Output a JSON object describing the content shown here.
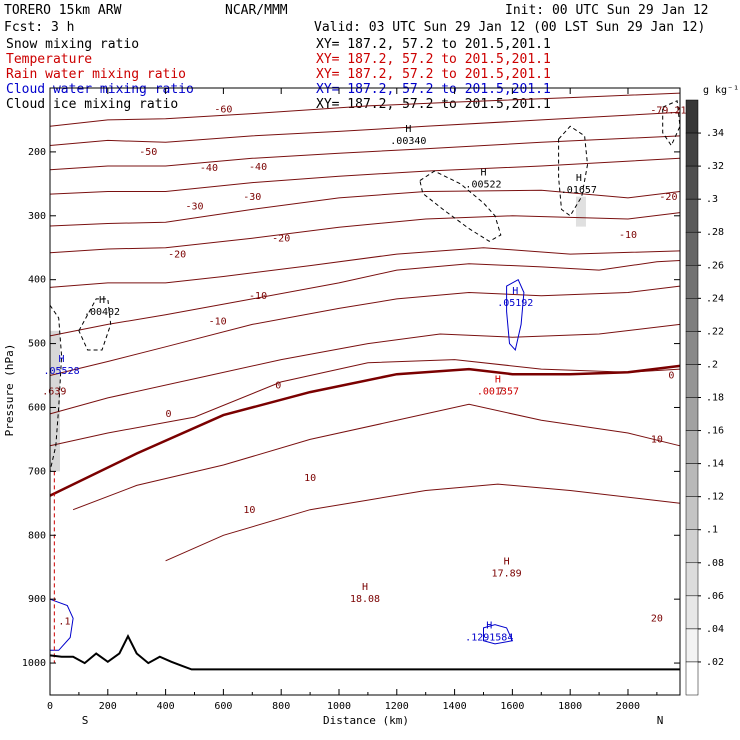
{
  "header": {
    "model": "TORERO  15km ARW",
    "center": "NCAR/MMM",
    "init": "Init: 00 UTC Sun 29 Jan 12",
    "fcst": "Fcst:    3 h",
    "valid": "Valid: 03 UTC Sun 29 Jan 12 (00 LST Sun 29 Jan 12)"
  },
  "fields": [
    {
      "name": "Snow mixing ratio",
      "xy": "XY= 187.2, 57.2 to 201.5,201.1",
      "color": "#000000"
    },
    {
      "name": "Temperature",
      "xy": "XY= 187.2, 57.2 to 201.5,201.1",
      "color": "#cc0000"
    },
    {
      "name": "Rain water mixing ratio",
      "xy": "XY= 187.2, 57.2 to 201.5,201.1",
      "color": "#cc0000"
    },
    {
      "name": "Cloud water mixing ratio",
      "xy": "XY= 187.2, 57.2 to 201.5,201.1",
      "color": "#0000cc"
    },
    {
      "name": "Cloud ice mixing ratio",
      "xy": "XY= 187.2, 57.2 to 201.5,201.1",
      "color": "#000000"
    }
  ],
  "colorbar": {
    "unit": "g kg⁻¹",
    "ticks": [
      ".34",
      ".32",
      ".3",
      ".28",
      ".26",
      ".24",
      ".22",
      ".2",
      ".18",
      ".16",
      ".14",
      ".12",
      ".1",
      ".08",
      ".06",
      ".04",
      ".02"
    ]
  },
  "chart_data": {
    "type": "contour-cross-section",
    "xlabel": "Distance (km)",
    "ylabel": "Pressure (hPa)",
    "xlim": [
      0,
      2180
    ],
    "ylim": [
      1050,
      100
    ],
    "xticks": [
      0,
      200,
      400,
      600,
      800,
      1000,
      1200,
      1400,
      1600,
      1800,
      2000
    ],
    "yticks": [
      200,
      300,
      400,
      500,
      600,
      700,
      800,
      900,
      1000
    ],
    "x_end_labels": {
      "left": "S",
      "right": "N"
    },
    "temperature_contours": [
      {
        "level": -60,
        "points": [
          [
            0,
            160
          ],
          [
            200,
            150
          ],
          [
            400,
            148
          ],
          [
            700,
            140
          ],
          [
            1100,
            128
          ],
          [
            1400,
            122
          ],
          [
            1800,
            115
          ],
          [
            2180,
            108
          ]
        ]
      },
      {
        "level": -50,
        "points": [
          [
            0,
            190
          ],
          [
            200,
            182
          ],
          [
            400,
            185
          ],
          [
            700,
            175
          ],
          [
            1000,
            168
          ],
          [
            1300,
            160
          ],
          [
            1700,
            150
          ],
          [
            2180,
            138
          ]
        ]
      },
      {
        "level": -40,
        "points": [
          [
            0,
            228
          ],
          [
            200,
            222
          ],
          [
            400,
            222
          ],
          [
            700,
            210
          ],
          [
            1000,
            202
          ],
          [
            1300,
            195
          ],
          [
            1700,
            185
          ],
          [
            2180,
            175
          ]
        ]
      },
      {
        "level": -30,
        "points": [
          [
            0,
            266
          ],
          [
            200,
            262
          ],
          [
            400,
            262
          ],
          [
            700,
            248
          ],
          [
            1000,
            238
          ],
          [
            1300,
            230
          ],
          [
            1700,
            222
          ],
          [
            2180,
            210
          ]
        ]
      },
      {
        "level": -20,
        "points": [
          [
            0,
            316
          ],
          [
            200,
            312
          ],
          [
            400,
            310
          ],
          [
            700,
            290
          ],
          [
            1000,
            272
          ],
          [
            1300,
            262
          ],
          [
            1700,
            260
          ],
          [
            2000,
            272
          ],
          [
            2180,
            262
          ]
        ]
      },
      {
        "level": -10,
        "points": [
          [
            0,
            358
          ],
          [
            200,
            352
          ],
          [
            400,
            350
          ],
          [
            700,
            335
          ],
          [
            1000,
            318
          ],
          [
            1300,
            305
          ],
          [
            1600,
            300
          ],
          [
            2000,
            305
          ],
          [
            2180,
            295
          ]
        ]
      },
      {
        "level": -10,
        "points": [
          [
            0,
            412
          ],
          [
            200,
            405
          ],
          [
            400,
            405
          ],
          [
            600,
            395
          ],
          [
            900,
            378
          ],
          [
            1200,
            360
          ],
          [
            1500,
            350
          ],
          [
            1800,
            360
          ],
          [
            2180,
            355
          ]
        ]
      },
      {
        "level": 0,
        "points": [
          [
            0,
            488
          ],
          [
            200,
            470
          ],
          [
            400,
            455
          ],
          [
            700,
            430
          ],
          [
            1000,
            405
          ],
          [
            1200,
            385
          ],
          [
            1450,
            375
          ],
          [
            1700,
            380
          ],
          [
            1900,
            385
          ],
          [
            2100,
            372
          ],
          [
            2180,
            370
          ]
        ]
      },
      {
        "level": 0,
        "points": [
          [
            0,
            550
          ],
          [
            200,
            528
          ],
          [
            400,
            505
          ],
          [
            700,
            470
          ],
          [
            1000,
            445
          ],
          [
            1200,
            430
          ],
          [
            1450,
            420
          ],
          [
            1700,
            425
          ],
          [
            2000,
            420
          ],
          [
            2180,
            410
          ]
        ]
      },
      {
        "level": 10,
        "points": [
          [
            0,
            610
          ],
          [
            200,
            585
          ],
          [
            500,
            555
          ],
          [
            800,
            525
          ],
          [
            1100,
            500
          ],
          [
            1350,
            485
          ],
          [
            1600,
            490
          ],
          [
            1900,
            485
          ],
          [
            2180,
            470
          ]
        ]
      },
      {
        "level": 10,
        "points": [
          [
            0,
            660
          ],
          [
            200,
            640
          ],
          [
            500,
            615
          ],
          [
            800,
            560
          ],
          [
            1100,
            530
          ],
          [
            1400,
            525
          ],
          [
            1700,
            540
          ],
          [
            2000,
            545
          ],
          [
            2180,
            540
          ]
        ]
      },
      {
        "level": 10,
        "points": [
          [
            80,
            760
          ],
          [
            300,
            722
          ],
          [
            600,
            690
          ],
          [
            900,
            650
          ],
          [
            1200,
            620
          ],
          [
            1450,
            595
          ],
          [
            1700,
            620
          ],
          [
            2000,
            640
          ],
          [
            2180,
            660
          ]
        ]
      },
      {
        "level": 20,
        "points": [
          [
            400,
            840
          ],
          [
            600,
            800
          ],
          [
            900,
            760
          ],
          [
            1100,
            745
          ],
          [
            1300,
            730
          ],
          [
            1550,
            720
          ],
          [
            1800,
            730
          ],
          [
            2180,
            750
          ]
        ]
      }
    ],
    "bold_freezing_line": {
      "level": 0,
      "points": [
        [
          0,
          738
        ],
        [
          300,
          672
        ],
        [
          600,
          612
        ],
        [
          900,
          576
        ],
        [
          1200,
          548
        ],
        [
          1450,
          540
        ],
        [
          1600,
          548
        ],
        [
          1800,
          548
        ],
        [
          2000,
          545
        ],
        [
          2180,
          535
        ]
      ]
    },
    "H_markers": [
      {
        "label": "H",
        "value": ".00340",
        "x": 1240,
        "p": 178,
        "color": "#000000"
      },
      {
        "label": "H",
        "value": ".00522",
        "x": 1500,
        "p": 246,
        "color": "#000000"
      },
      {
        "label": "H",
        "value": ".01657",
        "x": 1830,
        "p": 255,
        "color": "#000000"
      },
      {
        "label": "H",
        "value": ".00402",
        "x": 180,
        "p": 446,
        "color": "#000000"
      },
      {
        "label": "H",
        "value": ".05192",
        "x": 1610,
        "p": 432,
        "color": "#0000cc"
      },
      {
        "label": "H",
        "value": ".05528",
        "x": 40,
        "p": 538,
        "color": "#0000cc"
      },
      {
        "label": "H",
        "value": ".001357",
        "x": 1550,
        "p": 570,
        "color": "#cc0000"
      },
      {
        "label": "H",
        "value": "17.89",
        "x": 1580,
        "p": 855,
        "color": "#7a0000"
      },
      {
        "label": "H",
        "value": "18.08",
        "x": 1090,
        "p": 895,
        "color": "#7a0000"
      },
      {
        "label": "H",
        "value": ".1291584",
        "x": 1520,
        "p": 955,
        "color": "#0000cc"
      }
    ],
    "contour_labels": [
      {
        "text": "-79.21",
        "x": 2140,
        "p": 140
      },
      {
        "text": "-60",
        "x": 600,
        "p": 138
      },
      {
        "text": "-50",
        "x": 340,
        "p": 205
      },
      {
        "text": "-40",
        "x": 550,
        "p": 230
      },
      {
        "text": "-40",
        "x": 720,
        "p": 228
      },
      {
        "text": "-30",
        "x": 500,
        "p": 290
      },
      {
        "text": "-30",
        "x": 700,
        "p": 275
      },
      {
        "text": "-20",
        "x": 800,
        "p": 340
      },
      {
        "text": "-20",
        "x": 440,
        "p": 365
      },
      {
        "text": "-20",
        "x": 2140,
        "p": 275
      },
      {
        "text": "-10",
        "x": 720,
        "p": 430
      },
      {
        "text": "-10",
        "x": 580,
        "p": 470
      },
      {
        "text": "-10",
        "x": 2000,
        "p": 335
      },
      {
        "text": "0",
        "x": 790,
        "p": 570
      },
      {
        "text": "0",
        "x": 410,
        "p": 615
      },
      {
        "text": "0",
        "x": 2150,
        "p": 555
      },
      {
        "text": "10",
        "x": 900,
        "p": 715
      },
      {
        "text": "10",
        "x": 690,
        "p": 765
      },
      {
        "text": "10",
        "x": 2100,
        "p": 655
      },
      {
        "text": "20",
        "x": 2100,
        "p": 935
      },
      {
        "text": ".639",
        "x": 15,
        "p": 580
      },
      {
        "text": ".1",
        "x": 50,
        "p": 940
      },
      {
        "text": "7",
        "x": 1560,
        "p": 580
      }
    ],
    "terrain": [
      [
        0,
        988
      ],
      [
        40,
        990
      ],
      [
        80,
        990
      ],
      [
        120,
        1000
      ],
      [
        160,
        985
      ],
      [
        200,
        998
      ],
      [
        240,
        985
      ],
      [
        270,
        958
      ],
      [
        300,
        985
      ],
      [
        340,
        1000
      ],
      [
        380,
        990
      ],
      [
        420,
        998
      ],
      [
        460,
        1005
      ],
      [
        490,
        1010
      ],
      [
        1000,
        1010
      ],
      [
        1500,
        1010
      ],
      [
        2180,
        1010
      ]
    ],
    "snow_shading_ticks": [
      ".34",
      ".32",
      ".3",
      ".28",
      ".26",
      ".24",
      ".22",
      ".2",
      ".18",
      ".16",
      ".14",
      ".12",
      ".1",
      ".08",
      ".06",
      ".04",
      ".02"
    ]
  }
}
